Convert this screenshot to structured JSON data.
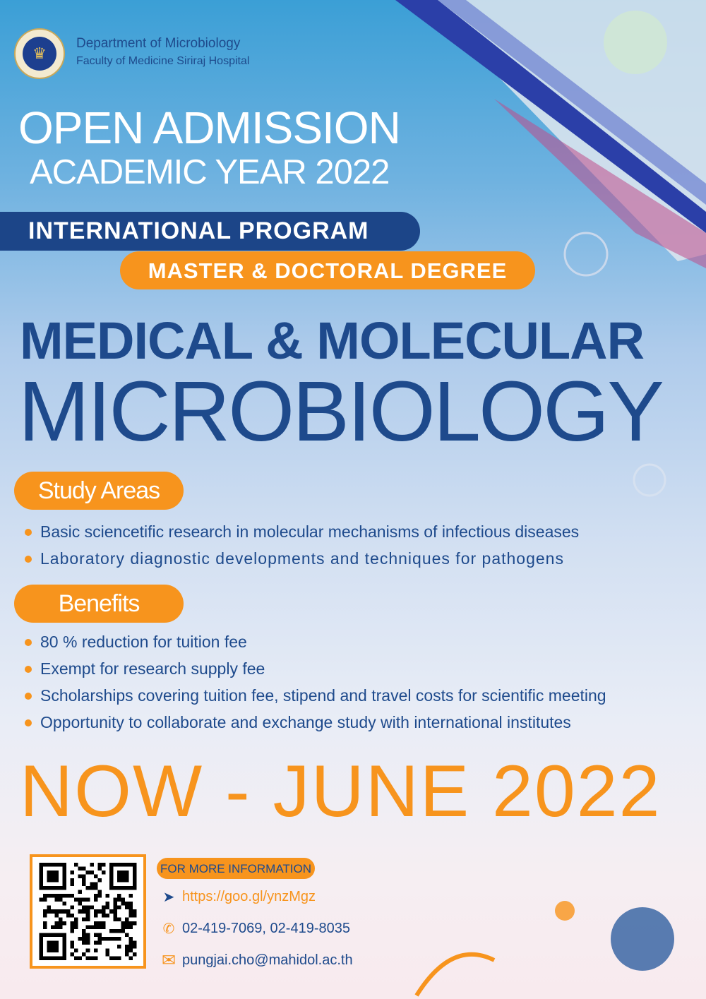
{
  "header": {
    "logo_alt": "Mahidol University seal",
    "department": "Department of Microbiology",
    "faculty": "Faculty of Medicine Siriraj Hospital"
  },
  "headline": {
    "line1": "OPEN ADMISSION",
    "line2": "ACADEMIC YEAR 2022"
  },
  "program_banner": "INTERNATIONAL PROGRAM",
  "degree_banner": "MASTER & DOCTORAL DEGREE",
  "title": {
    "line1": "MEDICAL & MOLECULAR",
    "line2": "MICROBIOLOGY"
  },
  "study_areas": {
    "label": "Study Areas",
    "items": [
      "Basic sciencetific research in molecular mechanisms of infectious diseases",
      "Laboratory diagnostic developments and techniques for pathogens"
    ]
  },
  "benefits": {
    "label": "Benefits",
    "items": [
      "80 % reduction for tuition fee",
      "Exempt for research supply fee",
      "Scholarships covering tuition fee, stipend and travel costs for scientific meeting",
      "Opportunity to collaborate and exchange study with international institutes"
    ]
  },
  "deadline": "NOW - JUNE 2022",
  "contact": {
    "label": "FOR MORE INFORMATION",
    "url": "https://goo.gl/ynzMgz",
    "phone": "02-419-7069, 02-419-8035",
    "email": "pungjai.cho@mahidol.ac.th",
    "icons": [
      "cursor-icon",
      "phone-icon",
      "mail-icon"
    ]
  },
  "colors": {
    "blue": "#1e4a8c",
    "orange": "#f7941d"
  }
}
